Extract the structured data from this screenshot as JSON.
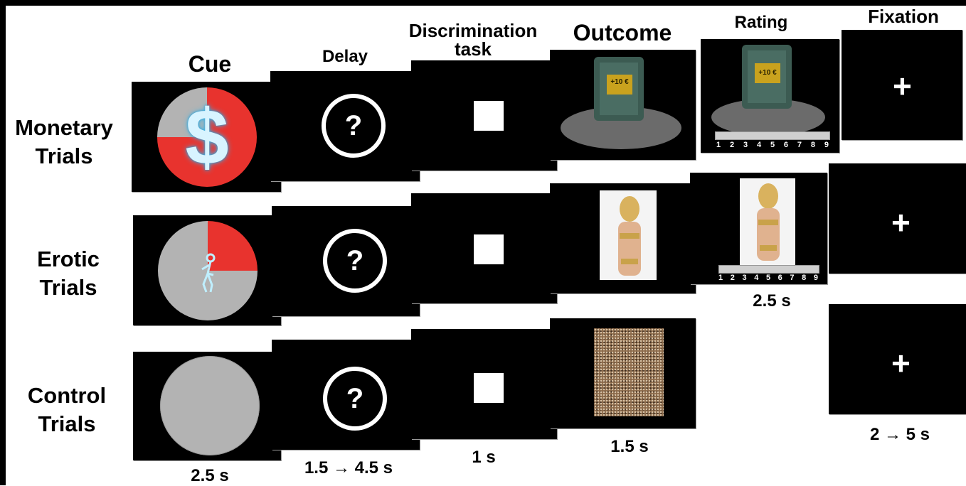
{
  "headers": {
    "cue": "Cue",
    "delay": "Delay",
    "discrimination_line1": "Discrimination",
    "discrimination_line2": "task",
    "outcome": "Outcome",
    "rating": "Rating",
    "fixation": "Fixation"
  },
  "rows": {
    "monetary_line1": "Monetary",
    "monetary_line2": "Trials",
    "erotic_line1": "Erotic",
    "erotic_line2": "Trials",
    "control_line1": "Control",
    "control_line2": "Trials"
  },
  "durations": {
    "cue": "2.5 s",
    "delay": "1.5 → 4.5 s",
    "discrimination": "1 s",
    "outcome": "1.5 s",
    "rating": "2.5 s",
    "fixation": "2 → 5 s"
  },
  "symbols": {
    "question": "?",
    "dollar": "$",
    "plus": "+",
    "money_tag": "+10 €"
  },
  "rating_scale": [
    "1",
    "2",
    "3",
    "4",
    "5",
    "6",
    "7",
    "8",
    "9"
  ],
  "colors": {
    "cue_red": "#e8332e",
    "cue_gray": "#b3b3b3",
    "panel": "#000000"
  }
}
